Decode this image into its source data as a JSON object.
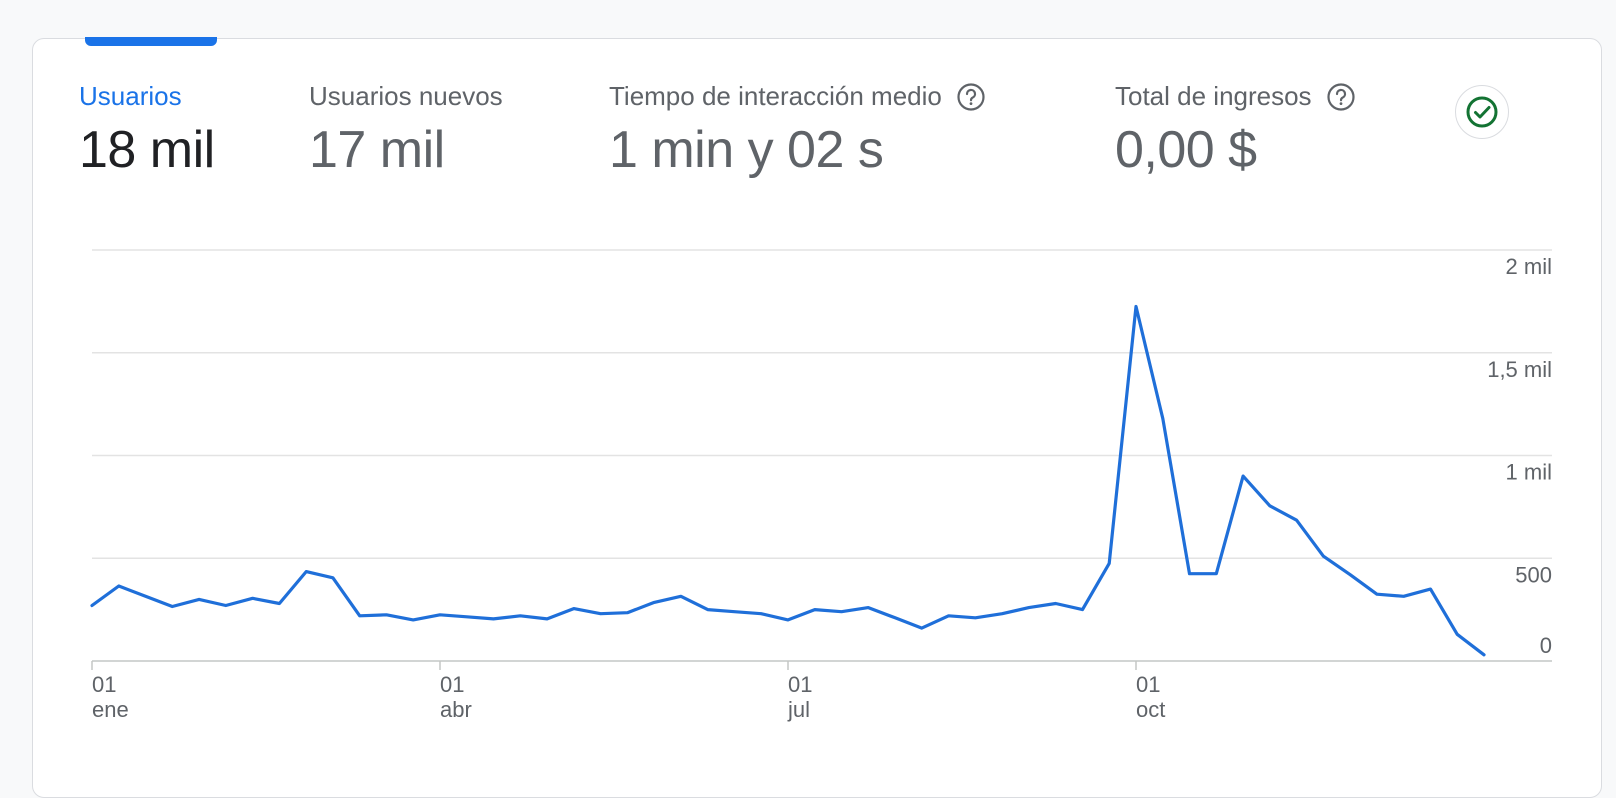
{
  "metrics": [
    {
      "label": "Usuarios",
      "value": "18 mil",
      "active": true,
      "help": false
    },
    {
      "label": "Usuarios nuevos",
      "value": "17 mil",
      "active": false,
      "help": false
    },
    {
      "label": "Tiempo de interacción medio",
      "value": "1 min y 02 s",
      "active": false,
      "help": true
    },
    {
      "label": "Total de ingresos",
      "value": "0,00 $",
      "active": false,
      "help": true
    }
  ],
  "status_icon": "check-circle-icon",
  "colors": {
    "accent": "#1a73e8",
    "line": "#1f6fd9",
    "success": "#137333"
  },
  "chart_data": {
    "type": "line",
    "y_ticks": [
      "2 mil",
      "1,5 mil",
      "1 mil",
      "500",
      "0"
    ],
    "y_tick_values": [
      2000,
      1500,
      1000,
      500,
      0
    ],
    "ylim": [
      0,
      2000
    ],
    "x_ticks": [
      {
        "day": "01",
        "month": "ene",
        "week": 0
      },
      {
        "day": "01",
        "month": "abr",
        "week": 13
      },
      {
        "day": "01",
        "month": "jul",
        "week": 26
      },
      {
        "day": "01",
        "month": "oct",
        "week": 39
      }
    ],
    "series": [
      {
        "values": [
          270,
          365,
          315,
          265,
          300,
          270,
          305,
          280,
          435,
          405,
          220,
          225,
          200,
          225,
          215,
          205,
          220,
          205,
          255,
          230,
          235,
          285,
          315,
          250,
          240,
          230,
          200,
          250,
          240,
          260,
          210,
          160,
          220,
          210,
          230,
          260,
          280,
          250,
          475,
          1725,
          1180,
          425,
          425,
          900,
          755,
          685,
          510,
          420,
          325,
          315,
          350,
          130,
          30
        ]
      }
    ]
  }
}
